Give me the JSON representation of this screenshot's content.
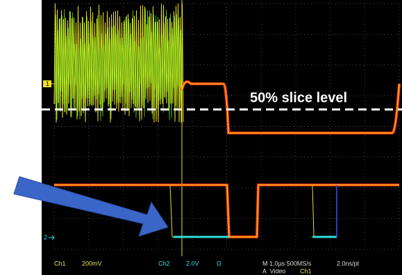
{
  "channel_markers": [
    "1",
    "2"
  ],
  "annotation": "50% slice level",
  "status_bar": {
    "ch1_label": "Ch1",
    "ch1_scale": "200mV",
    "ch2_label": "Ch2",
    "ch2_scale": "2.0V",
    "ch2_coupling": "Ω",
    "timebase": "M 1.0µs 500MS/s",
    "resolution": "2.0ns/pt",
    "trigger_mode": "A  Video",
    "trigger_source": "Ch1"
  }
}
